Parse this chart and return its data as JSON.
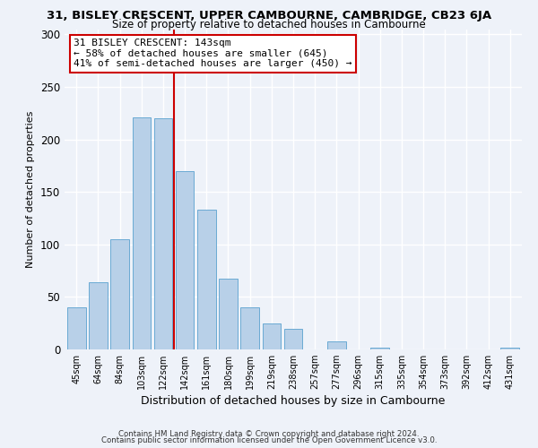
{
  "title_line1": "31, BISLEY CRESCENT, UPPER CAMBOURNE, CAMBRIDGE, CB23 6JA",
  "title_line2": "Size of property relative to detached houses in Cambourne",
  "xlabel": "Distribution of detached houses by size in Cambourne",
  "ylabel": "Number of detached properties",
  "bar_labels": [
    "45sqm",
    "64sqm",
    "84sqm",
    "103sqm",
    "122sqm",
    "142sqm",
    "161sqm",
    "180sqm",
    "199sqm",
    "219sqm",
    "238sqm",
    "257sqm",
    "277sqm",
    "296sqm",
    "315sqm",
    "335sqm",
    "354sqm",
    "373sqm",
    "392sqm",
    "412sqm",
    "431sqm"
  ],
  "bar_values": [
    40,
    64,
    105,
    221,
    220,
    170,
    133,
    67,
    40,
    25,
    20,
    0,
    8,
    0,
    2,
    0,
    0,
    0,
    0,
    0,
    2
  ],
  "bar_color": "#b8d0e8",
  "bar_edge_color": "#6aaad4",
  "vline_pos": 4.5,
  "vline_color": "#cc0000",
  "annotation_text": "31 BISLEY CRESCENT: 143sqm\n← 58% of detached houses are smaller (645)\n41% of semi-detached houses are larger (450) →",
  "annotation_box_color": "#ffffff",
  "annotation_box_edge": "#cc0000",
  "ylim": [
    0,
    305
  ],
  "yticks": [
    0,
    50,
    100,
    150,
    200,
    250,
    300
  ],
  "footer_line1": "Contains HM Land Registry data © Crown copyright and database right 2024.",
  "footer_line2": "Contains public sector information licensed under the Open Government Licence v3.0.",
  "bg_color": "#eef2f9",
  "grid_color": "#ffffff"
}
